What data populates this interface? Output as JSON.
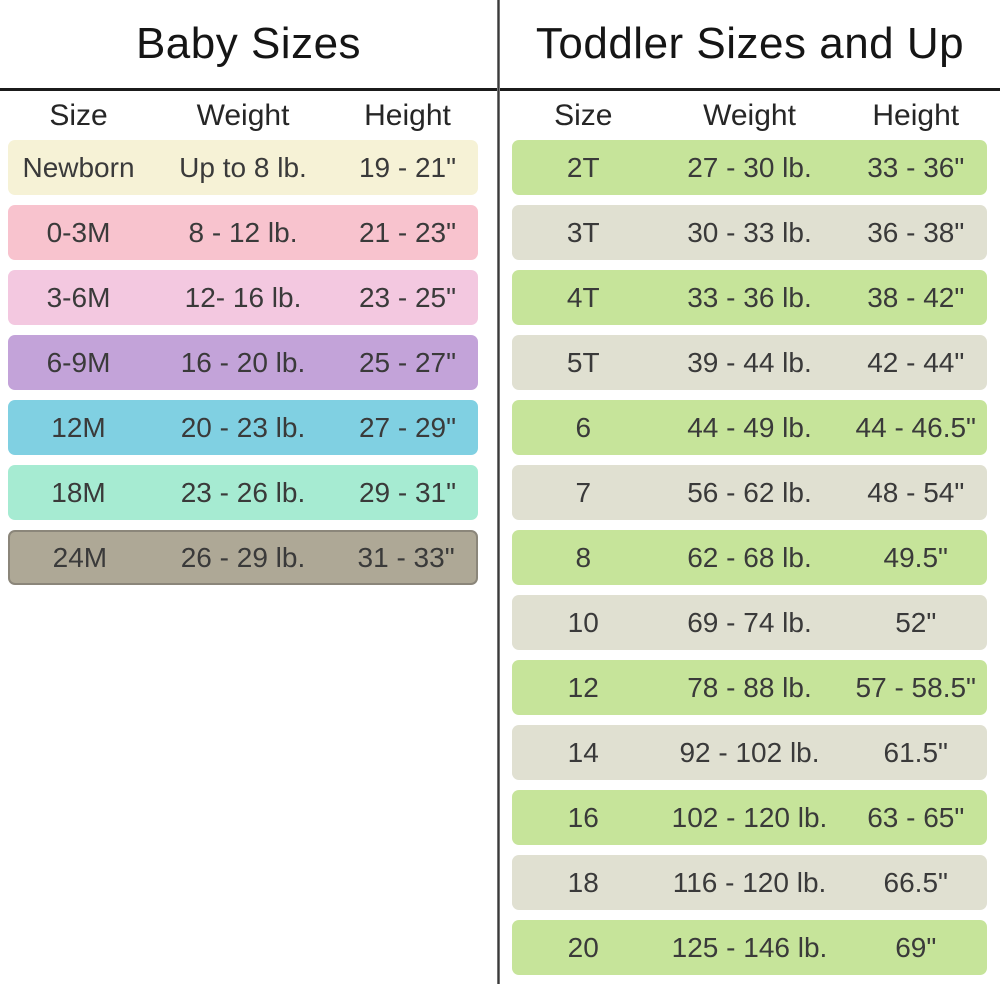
{
  "left_panel": {
    "title": "Baby Sizes",
    "columns": {
      "size": "Size",
      "weight": "Weight",
      "height": "Height"
    },
    "rows": [
      {
        "size": "Newborn",
        "weight": "Up to 8 lb.",
        "height": "19 - 21\"",
        "bg": "#f6f2d6"
      },
      {
        "size": "0-3M",
        "weight": "8 - 12 lb.",
        "height": "21 - 23\"",
        "bg": "#f8c3ce"
      },
      {
        "size": "3-6M",
        "weight": "12- 16 lb.",
        "height": "23 - 25\"",
        "bg": "#f3c8e0"
      },
      {
        "size": "6-9M",
        "weight": "16 - 20 lb.",
        "height": "25 - 27\"",
        "bg": "#c3a3d9"
      },
      {
        "size": "12M",
        "weight": "20 - 23 lb.",
        "height": "27 - 29\"",
        "bg": "#80d0e2"
      },
      {
        "size": "18M",
        "weight": "23 - 26 lb.",
        "height": "29 - 31\"",
        "bg": "#a6ebd2"
      },
      {
        "size": "24M",
        "weight": "26 - 29 lb.",
        "height": "31 - 33\"",
        "bg": "#aea896",
        "border_color": "#8b867a"
      }
    ]
  },
  "right_panel": {
    "title": "Toddler Sizes and Up",
    "columns": {
      "size": "Size",
      "weight": "Weight",
      "height": "Height"
    },
    "palette": {
      "green": "#c6e49a",
      "sage": "#e0e0d1"
    },
    "rows": [
      {
        "size": "2T",
        "weight": "27 - 30 lb.",
        "height": "33 - 36\"",
        "bg": "#c6e49a"
      },
      {
        "size": "3T",
        "weight": "30 - 33 lb.",
        "height": "36 - 38\"",
        "bg": "#e0e0d1"
      },
      {
        "size": "4T",
        "weight": "33 - 36 lb.",
        "height": "38 - 42\"",
        "bg": "#c6e49a"
      },
      {
        "size": "5T",
        "weight": "39 - 44 lb.",
        "height": "42 - 44\"",
        "bg": "#e0e0d1"
      },
      {
        "size": "6",
        "weight": "44 - 49 lb.",
        "height": "44 - 46.5\"",
        "bg": "#c6e49a"
      },
      {
        "size": "7",
        "weight": "56 - 62 lb.",
        "height": "48 - 54\"",
        "bg": "#e0e0d1"
      },
      {
        "size": "8",
        "weight": "62 - 68 lb.",
        "height": "49.5\"",
        "bg": "#c6e49a"
      },
      {
        "size": "10",
        "weight": "69 - 74 lb.",
        "height": "52\"",
        "bg": "#e0e0d1"
      },
      {
        "size": "12",
        "weight": "78 - 88 lb.",
        "height": "57 - 58.5\"",
        "bg": "#c6e49a"
      },
      {
        "size": "14",
        "weight": "92 - 102 lb.",
        "height": "61.5\"",
        "bg": "#e0e0d1"
      },
      {
        "size": "16",
        "weight": "102 - 120 lb.",
        "height": "63 - 65\"",
        "bg": "#c6e49a"
      },
      {
        "size": "18",
        "weight": "116 - 120 lb.",
        "height": "66.5\"",
        "bg": "#e0e0d1"
      },
      {
        "size": "20",
        "weight": "125 - 146 lb.",
        "height": "69\"",
        "bg": "#c6e49a"
      }
    ]
  }
}
